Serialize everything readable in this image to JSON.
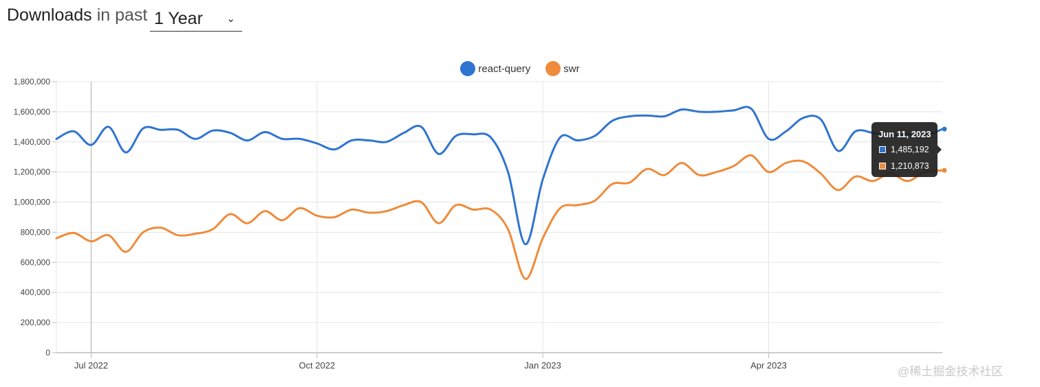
{
  "header": {
    "title": "Downloads",
    "subtitle": "in past",
    "period_value": "1 Year"
  },
  "legend": [
    {
      "name": "react-query",
      "color": "#2f74d0"
    },
    {
      "name": "swr",
      "color": "#ef8b3a"
    }
  ],
  "tooltip": {
    "date": "Jun 11, 2023",
    "rows": [
      {
        "value": "1,485,192",
        "color": "#2f74d0"
      },
      {
        "value": "1,210,873",
        "color": "#ef8b3a"
      }
    ]
  },
  "watermark": "@稀土掘金技术社区",
  "chart_data": {
    "type": "line",
    "grid": true,
    "legend_position": "top-center",
    "y_ticks": [
      "0",
      "200,000",
      "400,000",
      "600,000",
      "800,000",
      "1,000,000",
      "1,200,000",
      "1,400,000",
      "1,600,000",
      "1,800,000"
    ],
    "ylim": [
      0,
      1800000
    ],
    "x_ticks": [
      {
        "label": "Jul 2022",
        "date": "2022-07-03"
      },
      {
        "label": "Oct 2022",
        "date": "2022-10-02"
      },
      {
        "label": "Jan 2023",
        "date": "2023-01-01"
      },
      {
        "label": "Apr 2023",
        "date": "2023-04-02"
      }
    ],
    "xlim": [
      "2022-06-19",
      "2023-06-11"
    ],
    "crosshair_date": "2022-07-03",
    "x": [
      "2022-06-19",
      "2022-06-26",
      "2022-07-03",
      "2022-07-10",
      "2022-07-17",
      "2022-07-24",
      "2022-07-31",
      "2022-08-07",
      "2022-08-14",
      "2022-08-21",
      "2022-08-28",
      "2022-09-04",
      "2022-09-11",
      "2022-09-18",
      "2022-09-25",
      "2022-10-02",
      "2022-10-09",
      "2022-10-16",
      "2022-10-23",
      "2022-10-30",
      "2022-11-06",
      "2022-11-13",
      "2022-11-20",
      "2022-11-27",
      "2022-12-04",
      "2022-12-11",
      "2022-12-18",
      "2022-12-25",
      "2023-01-01",
      "2023-01-08",
      "2023-01-15",
      "2023-01-22",
      "2023-01-29",
      "2023-02-05",
      "2023-02-12",
      "2023-02-19",
      "2023-02-26",
      "2023-03-05",
      "2023-03-12",
      "2023-03-19",
      "2023-03-26",
      "2023-04-02",
      "2023-04-09",
      "2023-04-16",
      "2023-04-23",
      "2023-04-30",
      "2023-05-07",
      "2023-05-14",
      "2023-05-21",
      "2023-05-28",
      "2023-06-04",
      "2023-06-11"
    ],
    "series": [
      {
        "name": "react-query",
        "color": "#2f74d0",
        "values": [
          1420000,
          1470000,
          1380000,
          1500000,
          1330000,
          1490000,
          1480000,
          1480000,
          1420000,
          1475000,
          1460000,
          1410000,
          1465000,
          1420000,
          1420000,
          1390000,
          1350000,
          1410000,
          1410000,
          1400000,
          1460000,
          1500000,
          1320000,
          1440000,
          1450000,
          1430000,
          1200000,
          720000,
          1150000,
          1430000,
          1410000,
          1440000,
          1540000,
          1570000,
          1575000,
          1570000,
          1615000,
          1600000,
          1600000,
          1610000,
          1620000,
          1420000,
          1470000,
          1560000,
          1550000,
          1340000,
          1470000,
          1460000,
          1440000,
          1450000,
          1440000,
          1485192
        ]
      },
      {
        "name": "swr",
        "color": "#ef8b3a",
        "values": [
          760000,
          795000,
          740000,
          780000,
          670000,
          800000,
          830000,
          780000,
          790000,
          820000,
          920000,
          860000,
          940000,
          880000,
          960000,
          910000,
          900000,
          950000,
          930000,
          940000,
          980000,
          1000000,
          860000,
          980000,
          950000,
          950000,
          820000,
          490000,
          760000,
          960000,
          980000,
          1010000,
          1120000,
          1130000,
          1220000,
          1180000,
          1260000,
          1180000,
          1200000,
          1240000,
          1310000,
          1200000,
          1260000,
          1270000,
          1190000,
          1080000,
          1170000,
          1140000,
          1190000,
          1140000,
          1200000,
          1210873
        ]
      }
    ]
  }
}
